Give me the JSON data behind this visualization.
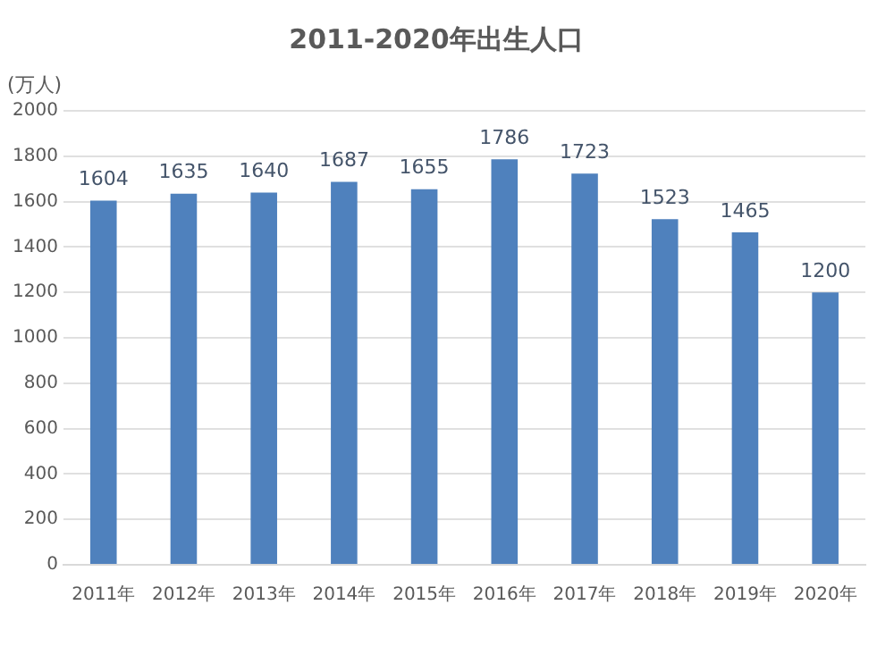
{
  "chart_data": {
    "type": "bar",
    "title": "2011-2020年出生人口",
    "ylabel": "(万人)",
    "categories": [
      "2011年",
      "2012年",
      "2013年",
      "2014年",
      "2015年",
      "2016年",
      "2017年",
      "2018年",
      "2019年",
      "2020年"
    ],
    "values": [
      1604,
      1635,
      1640,
      1687,
      1655,
      1786,
      1723,
      1523,
      1465,
      1200
    ],
    "color": "#4f81bd",
    "ylim": [
      0,
      2000
    ],
    "yticks": [
      0,
      200,
      400,
      600,
      800,
      1000,
      1200,
      1400,
      1600,
      1800,
      2000
    ],
    "grid": "y",
    "data_labels": true
  }
}
